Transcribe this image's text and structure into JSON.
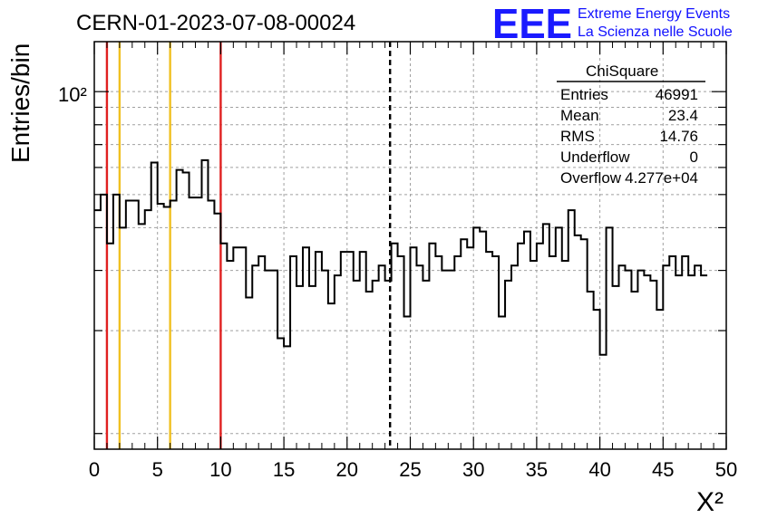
{
  "header": {
    "run_title": "CERN-01-2023-07-08-00024",
    "logo_mark": "EEE",
    "logo_line1": "Extreme Energy Events",
    "logo_line2": "La Scienza nelle Scuole"
  },
  "stats_box": {
    "title": "ChiSquare",
    "rows": [
      {
        "label": "Entries",
        "value": "46991"
      },
      {
        "label": "Mean",
        "value": "23.4"
      },
      {
        "label": "RMS",
        "value": "14.76"
      },
      {
        "label": "Underflow",
        "value": "0"
      },
      {
        "label": "Overflow",
        "value": "4.277e+04"
      }
    ]
  },
  "chart_data": {
    "type": "histogram",
    "title": "CERN-01-2023-07-08-00024",
    "xlabel": "X²",
    "ylabel": "Entries/bin",
    "xlim": [
      0,
      50
    ],
    "ylim": [
      9,
      140
    ],
    "y_scale": "log",
    "x_ticks": [
      "0",
      "5",
      "10",
      "15",
      "20",
      "25",
      "30",
      "35",
      "40",
      "45",
      "50"
    ],
    "y_tick_label": "10²",
    "grid": true,
    "bin_width": 0.5,
    "bin_values": [
      45,
      50,
      36,
      50,
      40,
      48,
      48,
      41,
      45,
      62,
      47,
      46,
      48,
      59,
      58,
      49,
      49,
      63,
      48,
      44,
      36,
      32,
      35,
      35,
      25,
      31,
      33,
      30,
      30,
      19,
      18,
      33,
      27,
      35,
      27,
      34,
      30,
      24,
      29,
      34,
      34,
      28,
      34,
      26,
      28,
      31,
      28,
      36,
      33,
      22,
      35,
      31,
      28,
      36,
      33,
      30,
      30,
      33,
      37,
      35,
      40,
      39,
      34,
      33,
      22,
      28,
      31,
      36,
      39,
      32,
      36,
      41,
      33,
      40,
      32,
      45,
      38,
      37,
      26,
      23,
      17,
      40,
      27,
      31,
      30,
      26,
      30,
      29,
      28,
      23,
      31,
      33,
      29,
      33,
      29,
      31,
      29
    ],
    "vertical_lines": [
      {
        "x": 1,
        "color": "#e02020"
      },
      {
        "x": 2,
        "color": "#f0c020"
      },
      {
        "x": 6,
        "color": "#f0c020"
      },
      {
        "x": 10,
        "color": "#e02020"
      },
      {
        "x": 23.4,
        "color": "#000000",
        "style": "dashed"
      }
    ]
  }
}
